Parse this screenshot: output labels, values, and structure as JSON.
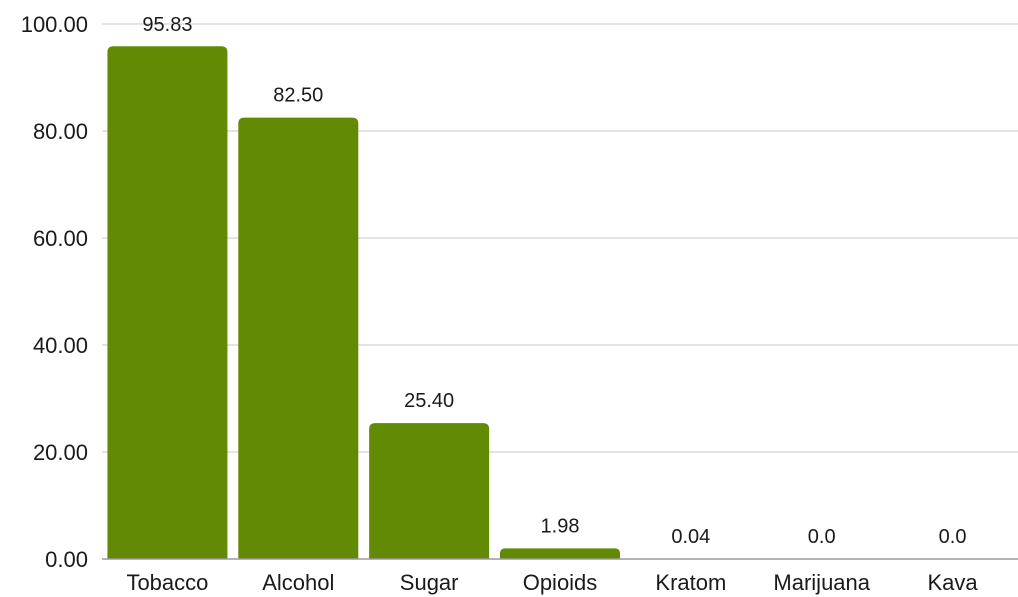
{
  "chart_data": {
    "type": "bar",
    "title": "",
    "xlabel": "",
    "ylabel": "",
    "categories": [
      "Tobacco",
      "Alcohol",
      "Sugar",
      "Opioids",
      "Kratom",
      "Marijuana",
      "Kava"
    ],
    "values": [
      95.83,
      82.5,
      25.4,
      1.98,
      0.04,
      0.0,
      0.0
    ],
    "data_labels": [
      "95.83",
      "82.50",
      "25.40",
      "1.98",
      "0.04",
      "0.0",
      "0.0"
    ],
    "ylim": [
      0,
      100
    ],
    "yticks": [
      0,
      20,
      40,
      60,
      80,
      100
    ],
    "ytick_labels": [
      "0.00",
      "20.00",
      "40.00",
      "60.00",
      "80.00",
      "100.00"
    ],
    "grid": true,
    "legend": "none",
    "bar_color": "#638a04"
  }
}
